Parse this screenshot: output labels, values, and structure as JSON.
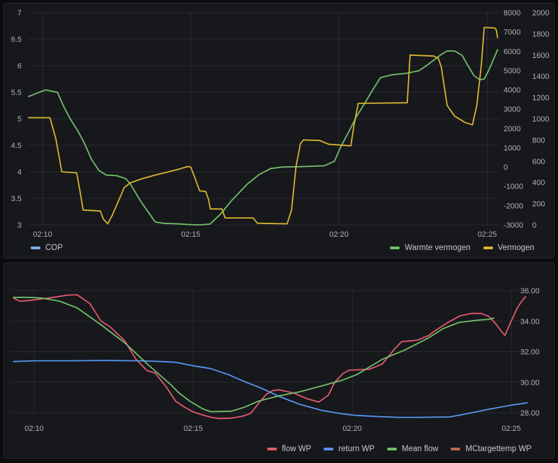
{
  "colors": {
    "background": "#0b0c0e",
    "panel_background": "#16181c",
    "grid": "rgba(204,204,220,0.10)",
    "tick_text": "#b0b2ba",
    "legend_text": "#c8c9ce",
    "green": "#73bf69",
    "yellow": "#d9b430",
    "blue": "#5794f2",
    "light_blue": "#7eb0f2",
    "red": "#e4596c",
    "orange_brown": "#b5694a"
  },
  "chart_data": [
    {
      "type": "line",
      "grid": true,
      "legend_position": "bottom",
      "x_ticks": [
        {
          "t": 10,
          "label": "02:10"
        },
        {
          "t": 15,
          "label": "02:15"
        },
        {
          "t": 20,
          "label": "02:20"
        },
        {
          "t": 25,
          "label": "02:25"
        }
      ],
      "axes": {
        "left": {
          "min": 3,
          "max": 7,
          "ticks": [
            "7",
            "6.5",
            "6",
            "5.5",
            "5",
            "4.5",
            "4",
            "3.5",
            "3"
          ]
        },
        "right1": {
          "min": -3000,
          "max": 8000,
          "ticks": [
            "8000",
            "7000",
            "6000",
            "5000",
            "4000",
            "3000",
            "2000",
            "1000",
            "0",
            "-1000",
            "-2000",
            "-3000"
          ]
        },
        "right2": {
          "min": 0,
          "max": 2000,
          "ticks": [
            "2000",
            "1800",
            "1600",
            "1400",
            "1200",
            "1000",
            "800",
            "600",
            "400",
            "200",
            "0"
          ]
        }
      },
      "legend": [
        {
          "label": "COP",
          "color": "#7eb0f2",
          "align": "left"
        },
        {
          "label": "Warmte vermogen",
          "color": "#73bf69",
          "align": "right"
        },
        {
          "label": "Vermogen",
          "color": "#d9b430",
          "align": "right"
        }
      ],
      "series": [
        {
          "name": "COP",
          "color": "#7eb0f2",
          "axis": "left",
          "visible_line": false,
          "points": []
        },
        {
          "name": "Warmte vermogen",
          "color": "#73bf69",
          "axis": "right1",
          "visible_line": true,
          "points": [
            [
              9.53,
              3650
            ],
            [
              9.9,
              3880
            ],
            [
              10.1,
              3990
            ],
            [
              10.5,
              3870
            ],
            [
              10.7,
              3180
            ],
            [
              10.95,
              2450
            ],
            [
              11.2,
              1840
            ],
            [
              11.4,
              1270
            ],
            [
              11.65,
              400
            ],
            [
              11.9,
              -180
            ],
            [
              12.15,
              -420
            ],
            [
              12.5,
              -450
            ],
            [
              12.8,
              -600
            ],
            [
              12.95,
              -850
            ],
            [
              13.3,
              -1750
            ],
            [
              13.55,
              -2300
            ],
            [
              13.8,
              -2850
            ],
            [
              14.1,
              -2920
            ],
            [
              14.6,
              -2950
            ],
            [
              15.0,
              -2990
            ],
            [
              15.3,
              -3000
            ],
            [
              15.65,
              -2960
            ],
            [
              16.0,
              -2450
            ],
            [
              16.4,
              -1700
            ],
            [
              16.9,
              -900
            ],
            [
              17.3,
              -400
            ],
            [
              17.7,
              -80
            ],
            [
              18.1,
              0
            ],
            [
              18.7,
              15
            ],
            [
              19.5,
              60
            ],
            [
              19.85,
              300
            ],
            [
              20.05,
              1010
            ],
            [
              20.3,
              1740
            ],
            [
              20.6,
              2640
            ],
            [
              20.85,
              3250
            ],
            [
              21.1,
              3900
            ],
            [
              21.4,
              4630
            ],
            [
              21.8,
              4780
            ],
            [
              22.25,
              4850
            ],
            [
              22.7,
              4990
            ],
            [
              22.95,
              5250
            ],
            [
              23.2,
              5540
            ],
            [
              23.45,
              5830
            ],
            [
              23.65,
              6010
            ],
            [
              23.9,
              6010
            ],
            [
              24.15,
              5790
            ],
            [
              24.35,
              5250
            ],
            [
              24.55,
              4740
            ],
            [
              24.75,
              4520
            ],
            [
              24.9,
              4560
            ],
            [
              25.05,
              5000
            ],
            [
              25.2,
              5540
            ],
            [
              25.35,
              6080
            ]
          ]
        },
        {
          "name": "Vermogen",
          "color": "#d9b430",
          "axis": "right2",
          "visible_line": true,
          "points": [
            [
              9.53,
              1010
            ],
            [
              10.25,
              1010
            ],
            [
              10.45,
              810
            ],
            [
              10.65,
              500
            ],
            [
              11.15,
              490
            ],
            [
              11.25,
              340
            ],
            [
              11.37,
              140
            ],
            [
              11.95,
              130
            ],
            [
              12.05,
              55
            ],
            [
              12.2,
              10
            ],
            [
              12.35,
              90
            ],
            [
              12.6,
              250
            ],
            [
              12.75,
              350
            ],
            [
              12.95,
              395
            ],
            [
              13.3,
              430
            ],
            [
              13.75,
              465
            ],
            [
              14.25,
              500
            ],
            [
              14.6,
              525
            ],
            [
              14.9,
              550
            ],
            [
              15.0,
              545
            ],
            [
              15.15,
              435
            ],
            [
              15.3,
              320
            ],
            [
              15.5,
              315
            ],
            [
              15.6,
              240
            ],
            [
              15.66,
              150
            ],
            [
              16.05,
              150
            ],
            [
              16.16,
              65
            ],
            [
              17.1,
              65
            ],
            [
              17.25,
              15
            ],
            [
              18.25,
              10
            ],
            [
              18.4,
              140
            ],
            [
              18.55,
              550
            ],
            [
              18.7,
              765
            ],
            [
              18.8,
              800
            ],
            [
              19.35,
              795
            ],
            [
              19.65,
              760
            ],
            [
              20.4,
              745
            ],
            [
              20.5,
              930
            ],
            [
              20.65,
              1145
            ],
            [
              22.3,
              1150
            ],
            [
              22.4,
              1600
            ],
            [
              23.2,
              1590
            ],
            [
              23.35,
              1570
            ],
            [
              23.45,
              1490
            ],
            [
              23.65,
              1125
            ],
            [
              23.9,
              1025
            ],
            [
              24.25,
              965
            ],
            [
              24.5,
              942
            ],
            [
              24.65,
              1125
            ],
            [
              24.8,
              1500
            ],
            [
              24.9,
              1860
            ],
            [
              25.25,
              1855
            ],
            [
              25.3,
              1840
            ],
            [
              25.35,
              1765
            ]
          ]
        }
      ]
    },
    {
      "type": "line",
      "grid": true,
      "legend_position": "bottom",
      "x_ticks": [
        {
          "t": 10,
          "label": "02:10"
        },
        {
          "t": 15,
          "label": "02:15"
        },
        {
          "t": 20,
          "label": "02:20"
        },
        {
          "t": 25,
          "label": "02:25"
        }
      ],
      "axes": {
        "right": {
          "min": 28,
          "max": 36,
          "ticks": [
            "36.00",
            "34.00",
            "32.00",
            "30.00",
            "28.00"
          ]
        }
      },
      "legend": [
        {
          "label": "flow WP",
          "color": "#e4596c",
          "align": "right"
        },
        {
          "label": "return WP",
          "color": "#5794f2",
          "align": "right"
        },
        {
          "label": "Mean flow",
          "color": "#73bf69",
          "align": "right"
        },
        {
          "label": "MCtargettemp WP",
          "color": "#b5694a",
          "align": "right"
        }
      ],
      "series": [
        {
          "name": "flow WP",
          "color": "#e4596c",
          "axis": "right",
          "visible_line": true,
          "points": [
            [
              9.35,
              35.5
            ],
            [
              9.55,
              35.3
            ],
            [
              9.85,
              35.35
            ],
            [
              10.25,
              35.45
            ],
            [
              10.6,
              35.55
            ],
            [
              11.05,
              35.7
            ],
            [
              11.35,
              35.72
            ],
            [
              11.75,
              35.15
            ],
            [
              12.1,
              34.0
            ],
            [
              12.4,
              33.6
            ],
            [
              12.85,
              32.7
            ],
            [
              13.2,
              31.5
            ],
            [
              13.55,
              30.75
            ],
            [
              13.8,
              30.6
            ],
            [
              14.15,
              29.7
            ],
            [
              14.45,
              28.75
            ],
            [
              14.7,
              28.4
            ],
            [
              15.0,
              28.05
            ],
            [
              15.3,
              27.85
            ],
            [
              15.6,
              27.68
            ],
            [
              15.85,
              27.62
            ],
            [
              16.2,
              27.65
            ],
            [
              16.55,
              27.77
            ],
            [
              16.8,
              27.95
            ],
            [
              17.05,
              28.6
            ],
            [
              17.3,
              29.2
            ],
            [
              17.5,
              29.45
            ],
            [
              17.7,
              29.5
            ],
            [
              18.15,
              29.3
            ],
            [
              18.6,
              28.9
            ],
            [
              18.95,
              28.7
            ],
            [
              19.25,
              29.15
            ],
            [
              19.45,
              30.0
            ],
            [
              19.7,
              30.55
            ],
            [
              19.9,
              30.78
            ],
            [
              20.55,
              30.85
            ],
            [
              20.95,
              31.2
            ],
            [
              21.3,
              32.1
            ],
            [
              21.55,
              32.65
            ],
            [
              22.05,
              32.75
            ],
            [
              22.4,
              33.05
            ],
            [
              22.55,
              33.3
            ],
            [
              23.0,
              33.9
            ],
            [
              23.4,
              34.35
            ],
            [
              23.75,
              34.5
            ],
            [
              24.05,
              34.5
            ],
            [
              24.3,
              34.3
            ],
            [
              24.5,
              33.85
            ],
            [
              24.7,
              33.3
            ],
            [
              24.8,
              33.07
            ],
            [
              24.95,
              33.77
            ],
            [
              25.2,
              34.9
            ],
            [
              25.35,
              35.36
            ],
            [
              25.45,
              35.6
            ]
          ]
        },
        {
          "name": "return WP",
          "color": "#5794f2",
          "axis": "right",
          "visible_line": true,
          "points": [
            [
              9.35,
              31.35
            ],
            [
              10.0,
              31.4
            ],
            [
              11.1,
              31.4
            ],
            [
              12.2,
              31.42
            ],
            [
              13.3,
              31.4
            ],
            [
              14.0,
              31.35
            ],
            [
              14.45,
              31.3
            ],
            [
              15.0,
              31.07
            ],
            [
              15.55,
              30.89
            ],
            [
              16.1,
              30.5
            ],
            [
              16.6,
              30.05
            ],
            [
              17.15,
              29.6
            ],
            [
              17.7,
              29.07
            ],
            [
              18.35,
              28.55
            ],
            [
              19.05,
              28.15
            ],
            [
              19.7,
              27.92
            ],
            [
              20.1,
              27.83
            ],
            [
              20.8,
              27.75
            ],
            [
              21.45,
              27.7
            ],
            [
              22.1,
              27.7
            ],
            [
              23.05,
              27.72
            ],
            [
              23.6,
              27.93
            ],
            [
              24.3,
              28.23
            ],
            [
              25.0,
              28.5
            ],
            [
              25.5,
              28.65
            ]
          ]
        },
        {
          "name": "Mean flow",
          "color": "#73bf69",
          "axis": "right",
          "visible_line": true,
          "points": [
            [
              9.35,
              35.55
            ],
            [
              9.85,
              35.55
            ],
            [
              10.25,
              35.5
            ],
            [
              10.8,
              35.3
            ],
            [
              11.35,
              34.86
            ],
            [
              12.1,
              33.76
            ],
            [
              12.85,
              32.57
            ],
            [
              13.55,
              31.2
            ],
            [
              14.3,
              29.83
            ],
            [
              14.55,
              29.3
            ],
            [
              14.9,
              28.75
            ],
            [
              15.3,
              28.25
            ],
            [
              15.55,
              28.07
            ],
            [
              16.2,
              28.1
            ],
            [
              16.6,
              28.35
            ],
            [
              17.05,
              28.76
            ],
            [
              17.7,
              29.1
            ],
            [
              18.35,
              29.37
            ],
            [
              19.05,
              29.76
            ],
            [
              19.7,
              30.14
            ],
            [
              20.15,
              30.5
            ],
            [
              20.95,
              31.5
            ],
            [
              21.65,
              32.1
            ],
            [
              22.4,
              32.9
            ],
            [
              22.85,
              33.5
            ],
            [
              23.35,
              33.9
            ],
            [
              23.9,
              34.05
            ],
            [
              24.3,
              34.12
            ],
            [
              24.45,
              34.2
            ]
          ]
        },
        {
          "name": "MCtargettemp WP",
          "color": "#b5694a",
          "axis": "right",
          "visible_line": false,
          "points": []
        }
      ]
    }
  ]
}
